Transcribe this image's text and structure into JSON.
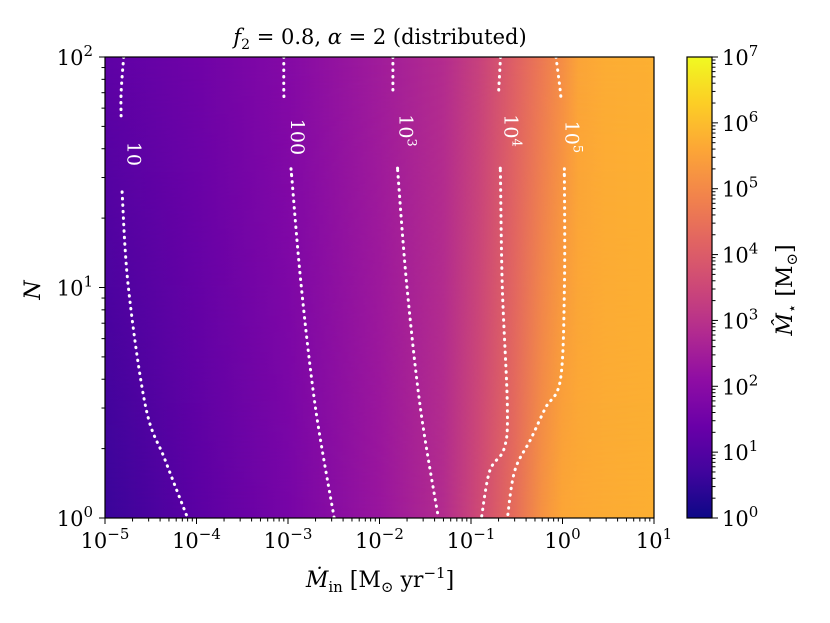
{
  "chart_data": {
    "type": "heatmap",
    "title": "f₂ = 0.8, α = 2 (distributed)",
    "xlabel": "Ṁ_in [M⊙ yr⁻¹]",
    "ylabel": "N",
    "colorbar_label": "M̂⋆ [M⊙]",
    "x_scale": "log",
    "y_scale": "log",
    "xlim": [
      1e-05,
      10
    ],
    "ylim": [
      1,
      100
    ],
    "color_range": [
      1,
      10000000.0
    ],
    "colormap": "plasma",
    "grid": false,
    "x_ticks": [
      {
        "value": 1e-05,
        "base": "10",
        "exp": "−5"
      },
      {
        "value": 0.0001,
        "base": "10",
        "exp": "−4"
      },
      {
        "value": 0.001,
        "base": "10",
        "exp": "−3"
      },
      {
        "value": 0.01,
        "base": "10",
        "exp": "−2"
      },
      {
        "value": 0.1,
        "base": "10",
        "exp": "−1"
      },
      {
        "value": 1,
        "base": "10",
        "exp": "0"
      },
      {
        "value": 10,
        "base": "10",
        "exp": "1"
      }
    ],
    "y_ticks": [
      {
        "value": 1,
        "base": "10",
        "exp": "0"
      },
      {
        "value": 10,
        "base": "10",
        "exp": "1"
      },
      {
        "value": 100,
        "base": "10",
        "exp": "2"
      }
    ],
    "colorbar_ticks": [
      {
        "value": 1,
        "base": "10",
        "exp": "0"
      },
      {
        "value": 10,
        "base": "10",
        "exp": "1"
      },
      {
        "value": 100,
        "base": "10",
        "exp": "2"
      },
      {
        "value": 1000,
        "base": "10",
        "exp": "3"
      },
      {
        "value": 10000,
        "base": "10",
        "exp": "4"
      },
      {
        "value": 100000,
        "base": "10",
        "exp": "5"
      },
      {
        "value": 1000000,
        "base": "10",
        "exp": "6"
      },
      {
        "value": 10000000,
        "base": "10",
        "exp": "7"
      }
    ],
    "field_samples": {
      "note_levels": "log10 of M̂⋆ sampled along x at low and high N",
      "x": [
        1e-05,
        0.0001,
        0.001,
        0.01,
        0.05,
        0.12,
        0.3,
        0.6,
        1.0,
        1.5,
        3,
        10
      ],
      "at_N_low": [
        0.6,
        1.15,
        1.65,
        2.3,
        2.85,
        3.55,
        4.4,
        5.2,
        5.6,
        5.65,
        5.7,
        5.75
      ],
      "at_N_high": [
        1.2,
        1.5,
        1.9,
        2.45,
        2.85,
        3.35,
        4.1,
        4.65,
        5.1,
        5.55,
        5.7,
        5.75
      ]
    },
    "contours": [
      {
        "label": "10",
        "label_base": "10",
        "label_exp": "",
        "level": 10,
        "points": [
          [
            1.6e-05,
            100
          ],
          [
            1.5e-05,
            70
          ],
          [
            1.5e-05,
            30
          ],
          [
            1.8e-05,
            10
          ],
          [
            2.8e-05,
            3
          ],
          [
            4.5e-05,
            1.8
          ],
          [
            8e-05,
            1
          ]
        ],
        "label_at": [
          1.55e-05,
          38
        ]
      },
      {
        "label": "100",
        "label_base": "100",
        "label_exp": "",
        "level": 100,
        "points": [
          [
            0.0009,
            100
          ],
          [
            0.0009,
            70
          ],
          [
            0.0011,
            30
          ],
          [
            0.0014,
            10
          ],
          [
            0.002,
            3
          ],
          [
            0.0032,
            1
          ]
        ],
        "label_at": [
          0.00095,
          45
        ]
      },
      {
        "label": "10^3",
        "label_base": "10",
        "label_exp": "3",
        "level": 1000,
        "points": [
          [
            0.014,
            100
          ],
          [
            0.014,
            70
          ],
          [
            0.016,
            30
          ],
          [
            0.02,
            10
          ],
          [
            0.028,
            3
          ],
          [
            0.044,
            1
          ]
        ],
        "label_at": [
          0.0145,
          48
        ]
      },
      {
        "label": "10^4",
        "label_base": "10",
        "label_exp": "4",
        "level": 10000,
        "points": [
          [
            0.21,
            100
          ],
          [
            0.2,
            70
          ],
          [
            0.21,
            30
          ],
          [
            0.22,
            10
          ],
          [
            0.25,
            3
          ],
          [
            0.23,
            2
          ],
          [
            0.16,
            1.6
          ],
          [
            0.13,
            1
          ]
        ],
        "label_at": [
          0.205,
          48
        ]
      },
      {
        "label": "10^5",
        "label_base": "10",
        "label_exp": "5",
        "level": 100000,
        "points": [
          [
            0.85,
            100
          ],
          [
            0.95,
            70
          ],
          [
            1.05,
            30
          ],
          [
            1.05,
            10
          ],
          [
            0.95,
            4
          ],
          [
            0.65,
            3
          ],
          [
            0.45,
            2.2
          ],
          [
            0.3,
            1.6
          ],
          [
            0.25,
            1
          ]
        ],
        "label_at": [
          0.95,
          45
        ]
      }
    ]
  }
}
